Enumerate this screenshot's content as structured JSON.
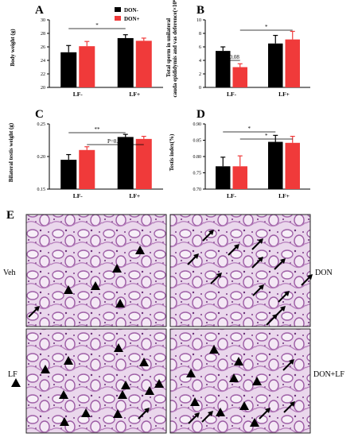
{
  "chart_data": [
    {
      "type": "bar",
      "panel_label": "A",
      "categories": [
        "LF-",
        "LF+"
      ],
      "series": [
        {
          "name": "DON-",
          "values": [
            25.2,
            27.3
          ],
          "errors": [
            1.0,
            0.5
          ]
        },
        {
          "name": "DON+",
          "values": [
            26.1,
            26.9
          ],
          "errors": [
            0.7,
            0.4
          ]
        }
      ],
      "ylabel": "Body weight (g)",
      "ylim": [
        20,
        30
      ],
      "yticks": [
        "20",
        "22",
        "24",
        "26",
        "28",
        "30"
      ],
      "legend": "top-center",
      "annotations": [
        {
          "text": "*",
          "from": "LF-:DON-",
          "to": "LF+:DON-"
        }
      ]
    },
    {
      "type": "bar",
      "panel_label": "B",
      "categories": [
        "LF-",
        "LF+"
      ],
      "series": [
        {
          "name": "DON-",
          "values": [
            5.4,
            6.5
          ],
          "errors": [
            0.6,
            1.2
          ]
        },
        {
          "name": "DON+",
          "values": [
            3.0,
            7.1
          ],
          "errors": [
            0.5,
            1.2
          ]
        }
      ],
      "ylabel": "Total sperm in unilateral cauda epididymis and vas deference(×10⁶)",
      "ylabel_lines": [
        "Total sperm in unilateral",
        "cauda epididymis and vas deference(×10⁶)"
      ],
      "ylim": [
        0,
        10
      ],
      "yticks": [
        "0",
        "2",
        "4",
        "6",
        "8",
        "10"
      ],
      "annotations": [
        {
          "text": "p=0.08",
          "from": "LF-:DON-",
          "to": "LF-:DON+"
        },
        {
          "text": "*",
          "from": "LF-:DON+",
          "to": "LF+:DON+"
        }
      ]
    },
    {
      "type": "bar",
      "panel_label": "C",
      "categories": [
        "LF-",
        "LF+"
      ],
      "series": [
        {
          "name": "DON-",
          "values": [
            0.195,
            0.23
          ],
          "errors": [
            0.008,
            0.004
          ]
        },
        {
          "name": "DON+",
          "values": [
            0.21,
            0.227
          ],
          "errors": [
            0.005,
            0.004
          ]
        }
      ],
      "ylabel": "Bilateral testis weight (g)",
      "ylim": [
        0.15,
        0.25
      ],
      "yticks": [
        "0.15",
        "0.20",
        "0.25"
      ],
      "annotations": [
        {
          "text": "**",
          "from": "LF-:DON-",
          "to": "LF+:DON-"
        },
        {
          "text": "P=0.05",
          "from": "LF-:DON+",
          "to": "LF+:DON+"
        }
      ]
    },
    {
      "type": "bar",
      "panel_label": "D",
      "categories": [
        "LF-",
        "LF+"
      ],
      "series": [
        {
          "name": "DON-",
          "values": [
            0.77,
            0.845
          ],
          "errors": [
            0.028,
            0.02
          ]
        },
        {
          "name": "DON+",
          "values": [
            0.77,
            0.842
          ],
          "errors": [
            0.032,
            0.02
          ]
        }
      ],
      "ylabel": "Testis index(%)",
      "ylim": [
        0.7,
        0.9
      ],
      "yticks": [
        "0.70",
        "0.75",
        "0.80",
        "0.85",
        "0.90"
      ],
      "annotations": [
        {
          "text": "*",
          "from": "LF-:DON-",
          "to": "LF+:DON-"
        },
        {
          "text": "*",
          "from": "LF-:DON+",
          "to": "LF+:DON+"
        }
      ]
    }
  ],
  "colors": {
    "don_minus": "#000000",
    "don_plus": "#f03a3a"
  },
  "histology": {
    "panel_label": "E",
    "row_labels": [
      "Veh",
      "LF"
    ],
    "col_labels_right": [
      "DON",
      "DON+LF"
    ],
    "panels": [
      {
        "group": "Veh",
        "marker": "triangle"
      },
      {
        "group": "DON",
        "marker": "arrow"
      },
      {
        "group": "LF",
        "marker": "triangle"
      },
      {
        "group": "DON+LF",
        "marker": "triangle-and-arrow"
      }
    ]
  }
}
